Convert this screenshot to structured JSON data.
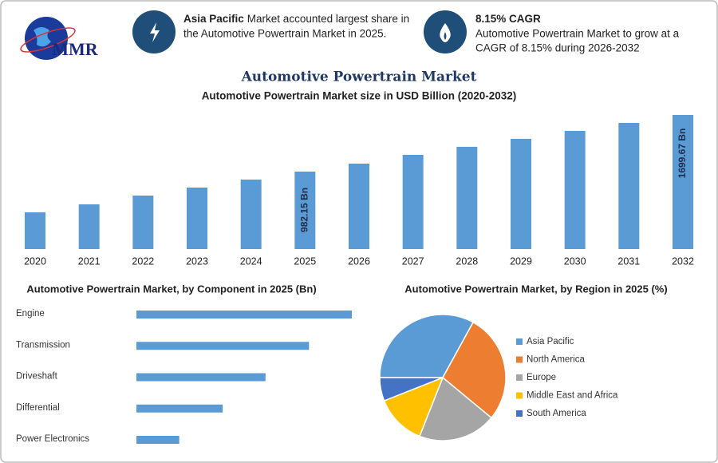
{
  "header": {
    "logo": "MMR",
    "info": [
      {
        "bold": "Asia Pacific",
        "lines": [
          "Market accounted largest share in",
          "the Automotive Powertrain Market in 2025."
        ]
      },
      {
        "bold": "8.15% CAGR",
        "lines": [
          "Automotive Powertrain Market to grow at a",
          "CAGR of 8.15% during 2026-2032"
        ]
      }
    ]
  },
  "chart_data": [
    {
      "type": "bar",
      "title": "Automotive Powertrain Market",
      "subtitle": "Automotive Powertrain Market size in USD Billion (2020-2032)",
      "categories": [
        "2020",
        "2021",
        "2022",
        "2023",
        "2024",
        "2025",
        "2026",
        "2027",
        "2028",
        "2029",
        "2030",
        "2031",
        "2032"
      ],
      "values": [
        466,
        567,
        678,
        779,
        881,
        982.15,
        1083,
        1194,
        1296,
        1397,
        1498,
        1599,
        1699.67
      ],
      "value_labels": [
        null,
        null,
        null,
        null,
        null,
        "982.15 Bn",
        null,
        null,
        null,
        null,
        null,
        null,
        "1699.67 Bn"
      ],
      "color": "#5b9bd5"
    },
    {
      "type": "hbar",
      "title": "Automotive Powertrain Market, by Component in 2025 (Bn)",
      "categories": [
        "Engine",
        "Transmission",
        "Driveshaft",
        "Differential",
        "Power Electronics"
      ],
      "values": [
        327,
        262,
        196,
        131,
        65
      ],
      "color": "#5b9bd5"
    },
    {
      "type": "pie",
      "title": "Automotive Powertrain Market, by Region in 2025 (%)",
      "categories": [
        "Asia Pacific",
        "North America",
        "Europe",
        "Middle East and Africa",
        "South America"
      ],
      "values": [
        33,
        28,
        20,
        13,
        6
      ],
      "colors": [
        "#5b9bd5",
        "#ed7d31",
        "#a5a5a5",
        "#ffc000",
        "#4472c4"
      ]
    }
  ]
}
